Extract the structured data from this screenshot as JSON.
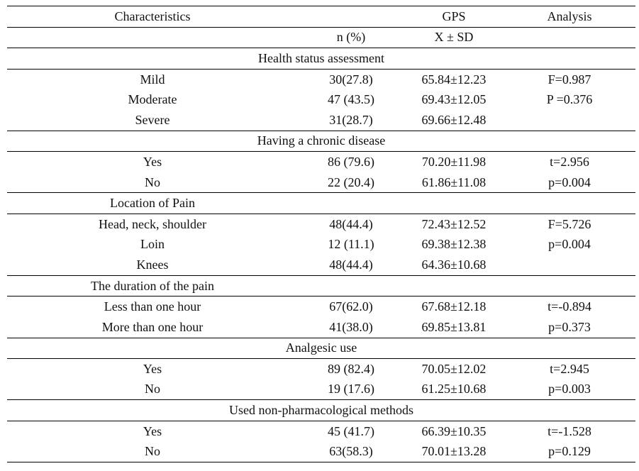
{
  "header": {
    "characteristics": "Characteristics",
    "gps": "GPS",
    "analysis": "Analysis"
  },
  "subheader": {
    "n": "n (%)",
    "mean_sd": "X ± SD"
  },
  "sections": [
    {
      "title": "Health status assessment",
      "rows": [
        {
          "label": "Mild",
          "n": "30(27.8)",
          "gps": "65.84±12.23",
          "analysis": "F=0.987"
        },
        {
          "label": "Moderate",
          "n": "47 (43.5)",
          "gps": "69.43±12.05",
          "analysis": "P =0.376"
        },
        {
          "label": "Severe",
          "n": "31(28.7)",
          "gps": "69.66±12.48"
        }
      ]
    },
    {
      "title": "Having a chronic disease",
      "rows": [
        {
          "label": "Yes",
          "n": "86 (79.6)",
          "gps": "70.20±11.98",
          "analysis": "t=2.956"
        },
        {
          "label": "No",
          "n": "22 (20.4)",
          "gps": "61.86±11.08",
          "analysis": "p=0.004"
        }
      ]
    },
    {
      "title": "Location of Pain",
      "rows": [
        {
          "label": "Head, neck, shoulder",
          "n": "48(44.4)",
          "gps": "72.43±12.52",
          "analysis": "F=5.726"
        },
        {
          "label": "Loin",
          "n": "12 (11.1)",
          "gps": "69.38±12.38",
          "analysis": "p=0.004"
        },
        {
          "label": "Knees",
          "n": "48(44.4)",
          "gps": "64.36±10.68"
        }
      ]
    },
    {
      "title": "The duration of the pain",
      "rows": [
        {
          "label": "Less than one hour",
          "n": "67(62.0)",
          "gps": "67.68±12.18",
          "analysis": "t=-0.894"
        },
        {
          "label": "More than one hour",
          "n": "41(38.0)",
          "gps": "69.85±13.81",
          "analysis": "p=0.373"
        }
      ]
    },
    {
      "title": "Analgesic use",
      "rows": [
        {
          "label": "Yes",
          "n": "89 (82.4)",
          "gps": "70.05±12.02",
          "analysis": "t=2.945"
        },
        {
          "label": "No",
          "n": "19 (17.6)",
          "gps": "61.25±10.68",
          "analysis": "p=0.003"
        }
      ]
    },
    {
      "title": "Used non-pharmacological methods",
      "rows": [
        {
          "label": "Yes",
          "n": "45 (41.7)",
          "gps": "66.39±10.35",
          "analysis": "t=-1.528"
        },
        {
          "label": "No",
          "n": "63(58.3)",
          "gps": "70.01±13.28",
          "analysis": "p=0.129"
        }
      ]
    }
  ]
}
